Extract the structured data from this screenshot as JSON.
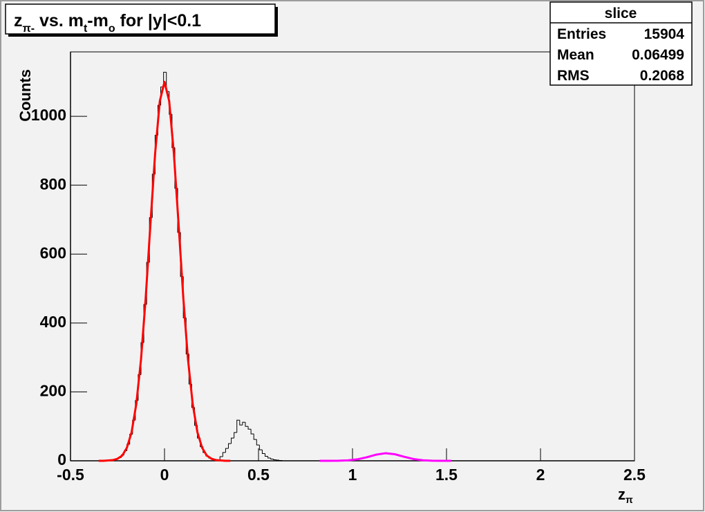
{
  "chart_data": {
    "type": "histogram",
    "title": [
      "z",
      "π-",
      " vs. m",
      "t",
      "-m",
      "o",
      " for |y|<0.1"
    ],
    "x_label": [
      "z",
      "π"
    ],
    "y_label": "Counts",
    "xlim": [
      -0.5,
      2.5
    ],
    "ylim": [
      0,
      1187
    ],
    "xticks": [
      -0.5,
      0,
      0.5,
      1,
      1.5,
      2,
      2.5
    ],
    "yticks": [
      0,
      200,
      400,
      600,
      800,
      1000
    ],
    "color": "#000000",
    "bins": [
      -0.35,
      -0.335,
      -0.32,
      -0.305,
      -0.29,
      -0.275,
      -0.26,
      -0.245,
      -0.23,
      -0.215,
      -0.2,
      -0.185,
      -0.17,
      -0.155,
      -0.14,
      -0.125,
      -0.11,
      -0.095,
      -0.08,
      -0.065,
      -0.05,
      -0.035,
      -0.02,
      -0.005,
      0.01,
      0.025,
      0.04,
      0.055,
      0.07,
      0.085,
      0.1,
      0.115,
      0.13,
      0.145,
      0.16,
      0.175,
      0.19,
      0.205,
      0.22,
      0.235,
      0.25,
      0.265,
      0.28,
      0.295,
      0.31,
      0.325,
      0.34,
      0.355,
      0.37,
      0.385,
      0.4,
      0.415,
      0.43,
      0.445,
      0.46,
      0.475,
      0.49,
      0.505,
      0.52,
      0.535,
      0.55,
      0.565,
      0.58,
      0.595,
      0.61,
      0.625
    ],
    "values": [
      0,
      0,
      0,
      1,
      2,
      3,
      5,
      9,
      17,
      29,
      48,
      77,
      118,
      175,
      250,
      343,
      454,
      576,
      706,
      832,
      945,
      1032,
      1085,
      1128,
      1072,
      1006,
      909,
      791,
      663,
      535,
      415,
      310,
      223,
      155,
      103,
      66,
      41,
      24,
      14,
      8,
      4,
      2,
      1,
      12,
      24,
      36,
      50,
      66,
      82,
      118,
      104,
      112,
      100,
      92,
      78,
      62,
      46,
      32,
      21,
      13,
      8,
      5,
      3,
      2,
      1
    ],
    "fits": [
      {
        "color": "#ff0000",
        "x": [
          -0.35,
          -0.325,
          -0.3,
          -0.275,
          -0.25,
          -0.225,
          -0.2,
          -0.175,
          -0.15,
          -0.125,
          -0.1,
          -0.075,
          -0.05,
          -0.025,
          0,
          0.025,
          0.05,
          0.075,
          0.1,
          0.125,
          0.15,
          0.175,
          0.2,
          0.225,
          0.25,
          0.275,
          0.3,
          0.325,
          0.35
        ],
        "values": [
          0,
          0,
          1,
          2,
          6,
          15,
          38,
          83,
          165,
          294,
          473,
          686,
          891,
          1044,
          1100,
          1044,
          891,
          686,
          473,
          294,
          165,
          83,
          38,
          15,
          6,
          2,
          1,
          0,
          0
        ]
      },
      {
        "color": "#ff00ff",
        "x": [
          0.825,
          0.875,
          0.925,
          0.975,
          1.025,
          1.075,
          1.125,
          1.175,
          1.225,
          1.275,
          1.325,
          1.375,
          1.425,
          1.475,
          1.525
        ],
        "values": [
          0,
          0,
          0.2,
          1.2,
          4.2,
          10.2,
          17.8,
          22,
          19.1,
          11.7,
          5.1,
          1.6,
          0.3,
          0,
          0
        ]
      }
    ],
    "stats": {
      "title": "slice",
      "rows": [
        {
          "label": "Entries",
          "value": 15904
        },
        {
          "label": "Mean",
          "value": 0.06499
        },
        {
          "label": "RMS",
          "value": 0.2068
        }
      ]
    }
  }
}
